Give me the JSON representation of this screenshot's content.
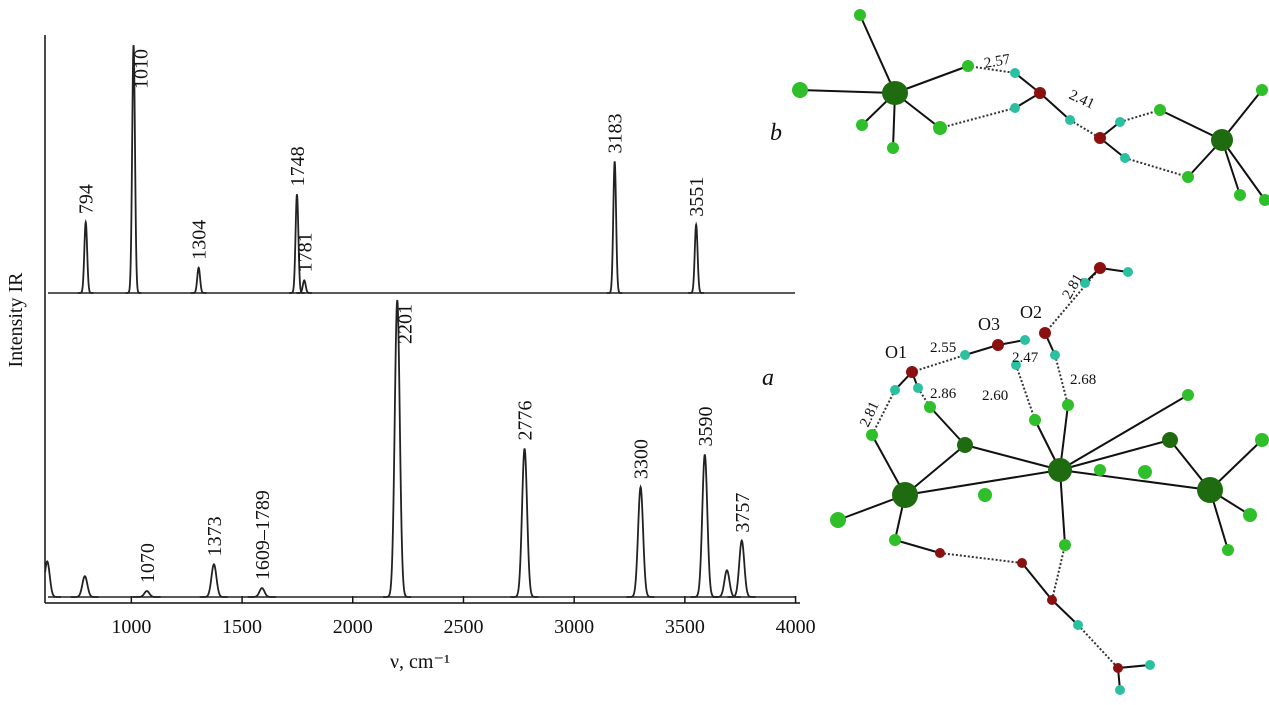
{
  "chart_data": {
    "type": "spectrum",
    "xlabel": "ν, cm⁻¹",
    "ylabel": "Intensity IR",
    "xlim": [
      610,
      4020
    ],
    "xticks": [
      1000,
      1500,
      2000,
      2500,
      3000,
      3500,
      4000
    ],
    "series": [
      {
        "name": "b",
        "color": "#222222",
        "x": [
          794,
          1010,
          1304,
          1748,
          1781,
          3183,
          3551
        ],
        "labels": [
          "794",
          "1010",
          "1304",
          "1748",
          "1781",
          "3183",
          "3551"
        ],
        "values": [
          0.28,
          0.98,
          0.1,
          0.39,
          0.05,
          0.52,
          0.27
        ]
      },
      {
        "name": "a",
        "color": "#222222",
        "x": [
          620,
          790,
          1070,
          1373,
          1590,
          2201,
          2776,
          3300,
          3590,
          3690,
          3757
        ],
        "labels": [
          null,
          null,
          "1070",
          "1373",
          "1609–1789",
          "2201",
          "2776",
          "3300",
          "3590",
          null,
          "3757"
        ],
        "values": [
          0.12,
          0.07,
          0.02,
          0.11,
          0.03,
          1.0,
          0.5,
          0.37,
          0.48,
          0.09,
          0.19
        ]
      }
    ]
  },
  "structures": {
    "b": {
      "label": "b",
      "distances": [
        "2.57",
        "2.41"
      ]
    },
    "a": {
      "label": "a",
      "atoms": [
        "O1",
        "O3",
        "O2"
      ],
      "distances": [
        "2.81",
        "2.55",
        "2.47",
        "2.86",
        "2.60",
        "2.68",
        "2.81"
      ]
    }
  }
}
